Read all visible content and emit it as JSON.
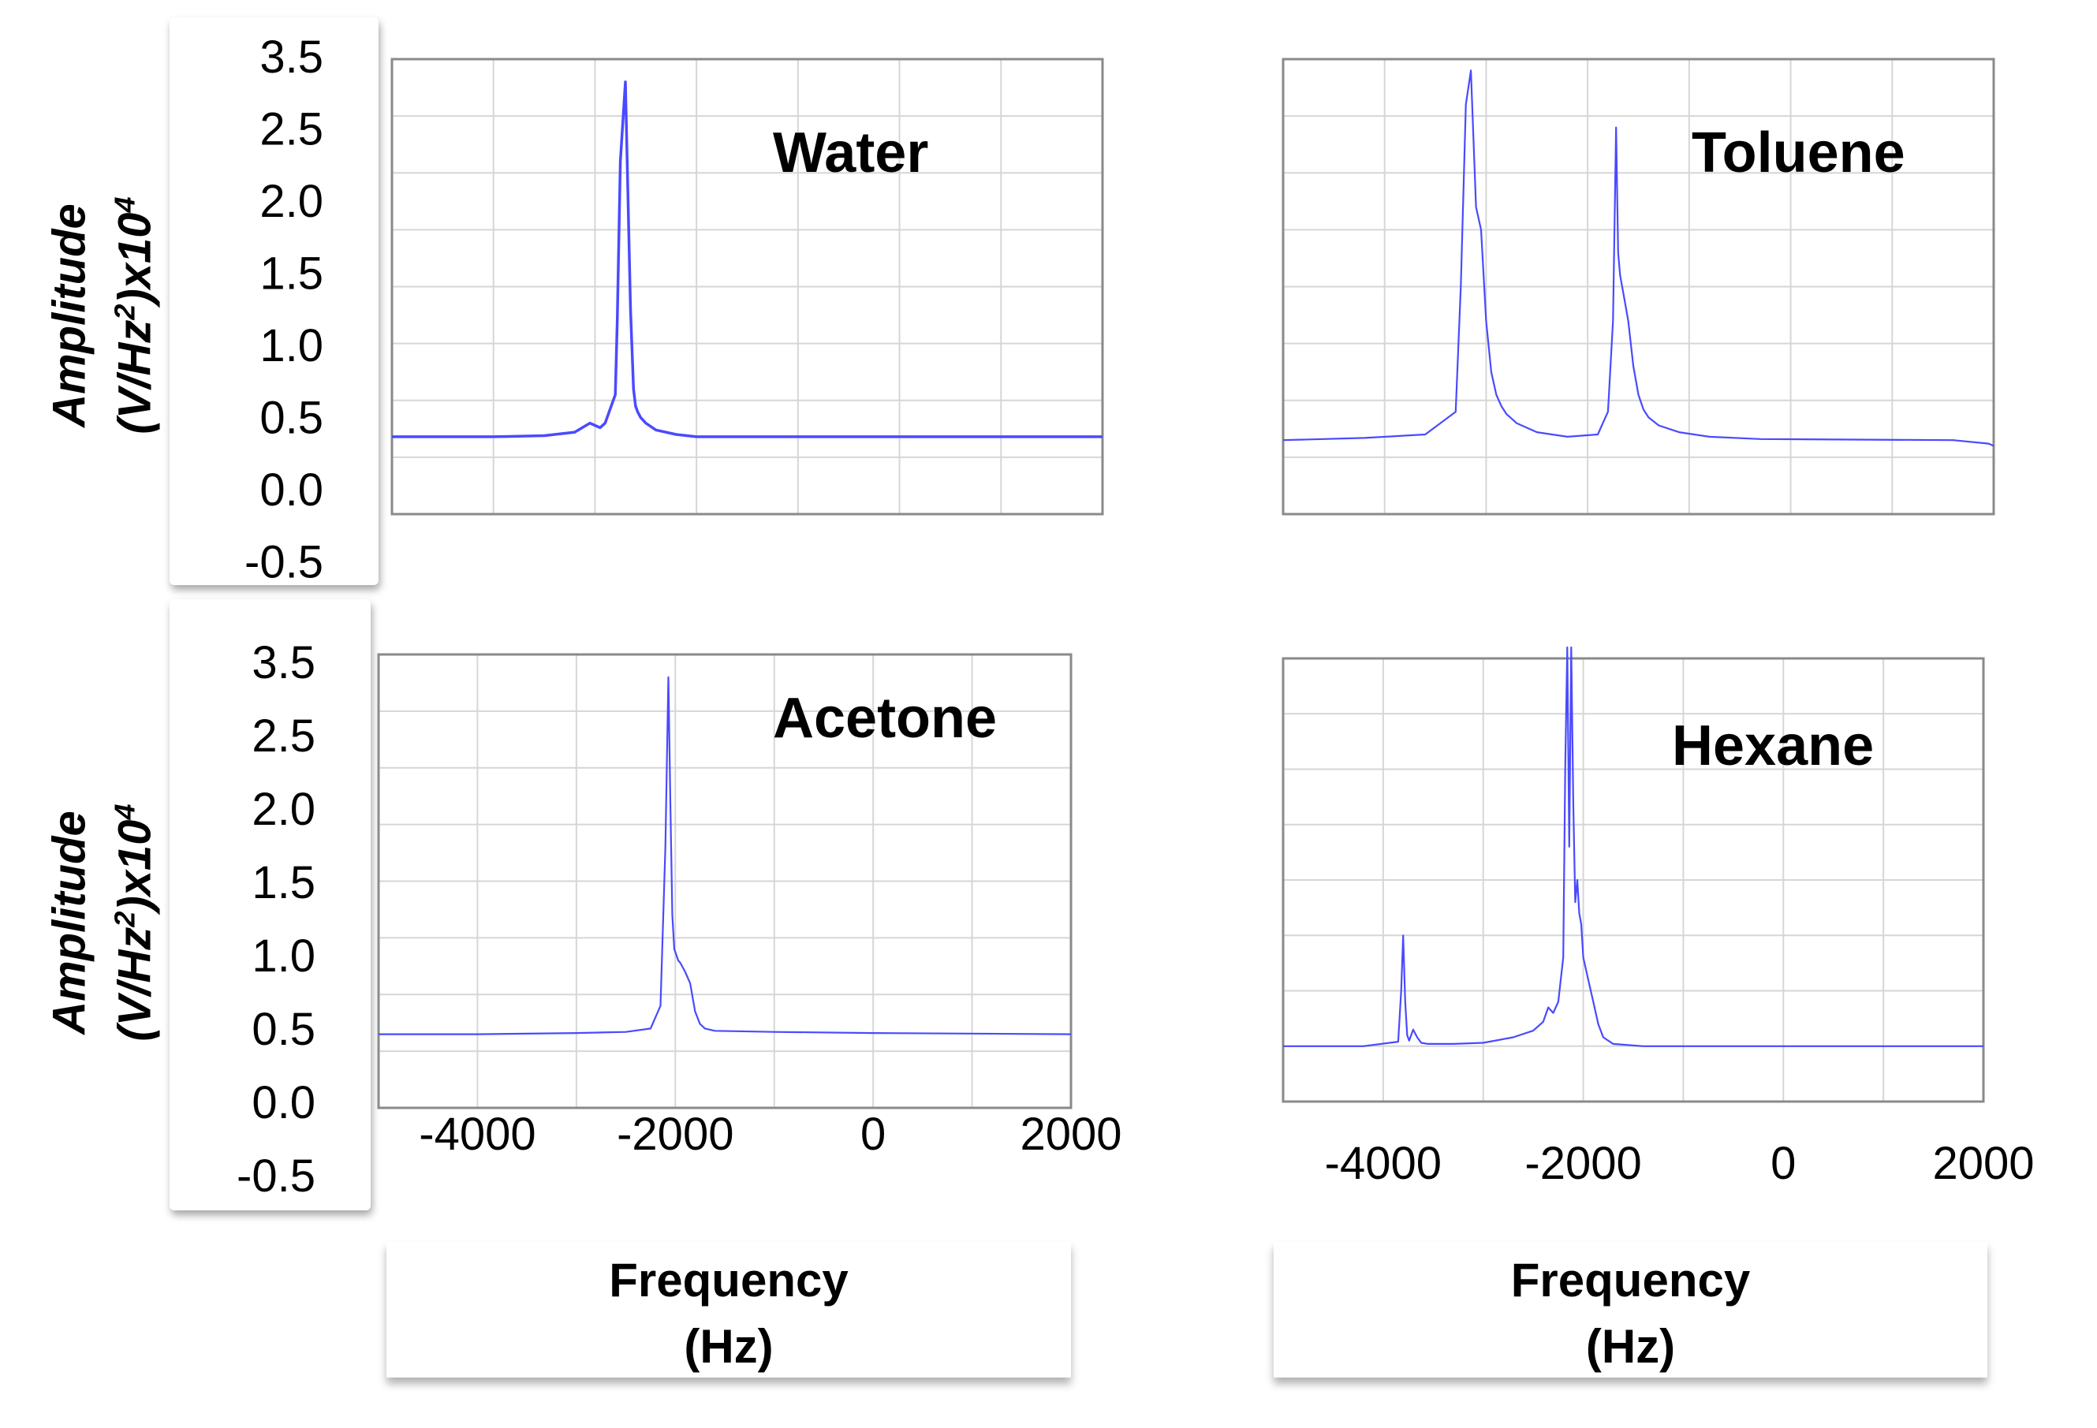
{
  "colors": {
    "trace": "#4a4aff",
    "grid": "#d6d6d6",
    "frame": "#8a8a8a",
    "text": "#000000"
  },
  "labels": {
    "y_axis_line1": "Amplitude",
    "y_axis_line2": "(V/Hz",
    "y_axis_sup1": "2",
    "y_axis_line3": ")x10",
    "y_axis_sup2": "4",
    "x_axis_line1": "Frequency",
    "x_axis_line2": "(Hz)"
  },
  "chart_data": [
    {
      "type": "line",
      "title": "Water",
      "xlabel": "Frequency (Hz)",
      "ylabel": "Amplitude (V/Hz²)x10⁴",
      "xlim": [
        -5000,
        2000
      ],
      "ylim": [
        -0.5,
        3.5
      ],
      "y_ticks": [
        "3.5",
        "2.5",
        "2.0",
        "1.5",
        "1.0",
        "0.5",
        "0.0",
        "-0.5"
      ],
      "x_ticks": [],
      "grid": true,
      "series": [
        {
          "name": "Water",
          "x": [
            -5000,
            -4000,
            -3500,
            -3200,
            -3050,
            -2950,
            -2900,
            -2800,
            -2780,
            -2750,
            -2700,
            -2650,
            -2620,
            -2600,
            -2580,
            -2550,
            -2500,
            -2400,
            -2200,
            -2000,
            0,
            2000
          ],
          "y": [
            0.18,
            0.18,
            0.19,
            0.22,
            0.3,
            0.26,
            0.3,
            0.55,
            1.2,
            2.6,
            3.3,
            1.3,
            0.6,
            0.45,
            0.4,
            0.35,
            0.3,
            0.24,
            0.2,
            0.18,
            0.18,
            0.18
          ]
        }
      ]
    },
    {
      "type": "line",
      "title": "Toluene",
      "xlabel": "Frequency (Hz)",
      "ylabel": "Amplitude (V/Hz²)x10⁴",
      "xlim": [
        -5000,
        2000
      ],
      "ylim": [
        -0.5,
        3.5
      ],
      "y_ticks": [],
      "x_ticks": [],
      "grid": true,
      "series": [
        {
          "name": "Toluene",
          "x": [
            -5000,
            -4200,
            -3600,
            -3300,
            -3250,
            -3200,
            -3150,
            -3100,
            -3050,
            -3000,
            -2950,
            -2900,
            -2850,
            -2800,
            -2700,
            -2500,
            -2200,
            -1900,
            -1800,
            -1750,
            -1720,
            -1700,
            -1680,
            -1650,
            -1600,
            -1550,
            -1500,
            -1450,
            -1400,
            -1300,
            -1100,
            -800,
            -300,
            1600,
            1950,
            2000
          ],
          "y": [
            0.15,
            0.17,
            0.2,
            0.4,
            1.5,
            3.1,
            3.4,
            2.2,
            2.0,
            1.2,
            0.75,
            0.55,
            0.45,
            0.38,
            0.3,
            0.22,
            0.18,
            0.2,
            0.4,
            1.2,
            2.9,
            1.8,
            1.6,
            1.45,
            1.2,
            0.8,
            0.55,
            0.42,
            0.35,
            0.28,
            0.22,
            0.18,
            0.16,
            0.15,
            0.12,
            0.1
          ]
        }
      ]
    },
    {
      "type": "line",
      "title": "Acetone",
      "xlabel": "Frequency (Hz)",
      "ylabel": "Amplitude (V/Hz²)x10⁴",
      "xlim": [
        -5000,
        2000
      ],
      "ylim": [
        -0.5,
        3.5
      ],
      "y_ticks": [
        "3.5",
        "2.5",
        "2.0",
        "1.5",
        "1.0",
        "0.5",
        "0.0",
        "-0.5"
      ],
      "x_ticks": [
        "-4000",
        "-2000",
        "0",
        "2000"
      ],
      "grid": true,
      "series": [
        {
          "name": "Acetone",
          "x": [
            -5000,
            -4000,
            -3000,
            -2500,
            -2250,
            -2150,
            -2100,
            -2070,
            -2050,
            -2030,
            -2010,
            -1990,
            -1970,
            -1950,
            -1900,
            -1850,
            -1800,
            -1750,
            -1700,
            -1600,
            -1000,
            0,
            2000
          ],
          "y": [
            0.15,
            0.15,
            0.16,
            0.17,
            0.2,
            0.4,
            1.8,
            3.3,
            2.2,
            1.2,
            0.9,
            0.85,
            0.8,
            0.78,
            0.7,
            0.6,
            0.35,
            0.24,
            0.2,
            0.18,
            0.17,
            0.16,
            0.15
          ]
        }
      ]
    },
    {
      "type": "line",
      "title": "Hexane",
      "xlabel": "Frequency (Hz)",
      "ylabel": "Amplitude (V/Hz²)x10⁴",
      "xlim": [
        -5000,
        2000
      ],
      "ylim": [
        -0.5,
        3.5
      ],
      "y_ticks": [],
      "x_ticks": [
        "-4000",
        "-2000",
        "0",
        "2000"
      ],
      "grid": true,
      "series": [
        {
          "name": "Hexane",
          "x": [
            -5000,
            -4200,
            -3850,
            -3820,
            -3800,
            -3780,
            -3760,
            -3740,
            -3700,
            -3660,
            -3620,
            -3550,
            -3300,
            -3000,
            -2700,
            -2500,
            -2400,
            -2350,
            -2300,
            -2250,
            -2200,
            -2180,
            -2160,
            -2140,
            -2120,
            -2100,
            -2080,
            -2060,
            -2040,
            -2020,
            -2000,
            -1950,
            -1900,
            -1850,
            -1800,
            -1700,
            -1400,
            0,
            2000
          ],
          "y": [
            0.0,
            0.0,
            0.04,
            0.5,
            1.0,
            0.4,
            0.1,
            0.05,
            0.15,
            0.08,
            0.03,
            0.02,
            0.02,
            0.03,
            0.08,
            0.14,
            0.22,
            0.35,
            0.3,
            0.4,
            0.8,
            2.5,
            3.6,
            1.8,
            3.6,
            2.2,
            1.3,
            1.5,
            1.2,
            1.1,
            0.8,
            0.6,
            0.4,
            0.2,
            0.08,
            0.02,
            0.0,
            0.0,
            0.0
          ]
        }
      ]
    }
  ]
}
